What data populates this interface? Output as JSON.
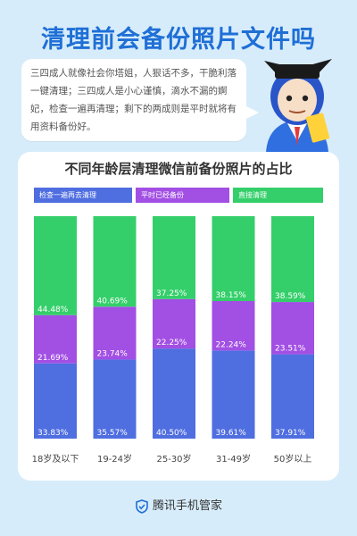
{
  "header": {
    "title": "清理前会备份照片文件吗"
  },
  "intro": {
    "text": "三四成人就像社会你塔姐，人狠话不多，干脆利落一键清理；三四成人是小心谨慎，滴水不漏的婀妃，检查一遍再清理；剩下的两成则是平时就将有用资料备份好。"
  },
  "footer": {
    "brand": "腾讯手机管家"
  },
  "colors": {
    "blue": "#4f6ee0",
    "purple": "#a24fe4",
    "green": "#34cf6a",
    "title": "#1f6fd6"
  },
  "chart_data": {
    "type": "bar",
    "stacked": true,
    "title": "不同年龄层清理微信前备份照片的占比",
    "categories": [
      "18岁及以下",
      "19-24岁",
      "25-30岁",
      "31-49岁",
      "50岁以上"
    ],
    "series": [
      {
        "name": "检查一遍再去清理",
        "color": "#4f6ee0",
        "values": [
          33.83,
          35.57,
          40.5,
          39.61,
          37.91
        ],
        "labels": [
          "33.83%",
          "35.57%",
          "40.50%",
          "39.61%",
          "37.91%"
        ]
      },
      {
        "name": "平时已经备份",
        "color": "#a24fe4",
        "values": [
          21.69,
          23.74,
          22.25,
          22.24,
          23.51
        ],
        "labels": [
          "21.69%",
          "23.74%",
          "22.25%",
          "22.24%",
          "23.51%"
        ]
      },
      {
        "name": "直接清理",
        "color": "#34cf6a",
        "values": [
          44.48,
          40.69,
          37.25,
          38.15,
          38.59
        ],
        "labels": [
          "44.48%",
          "40.69%",
          "37.25%",
          "38.15%",
          "38.59%"
        ]
      }
    ],
    "ylim": [
      0,
      100
    ],
    "legend_position": "top"
  }
}
